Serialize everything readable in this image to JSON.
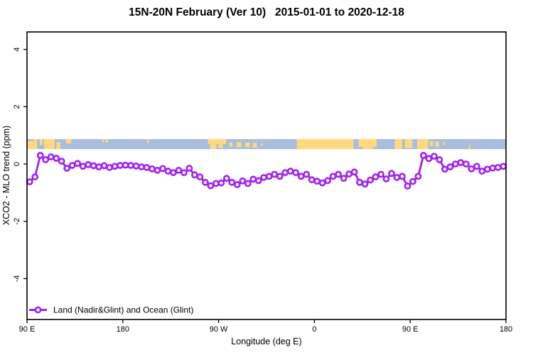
{
  "window": {
    "title": "15N-20N February (Ver 10)   2015-01-01 to 2020-12-18"
  },
  "chart_data": {
    "type": "line",
    "title": "15N-20N February (Ver 10)   2015-01-01 to 2020-12-18",
    "xlabel": "Longitude (deg E)",
    "ylabel": "XCO2 - MLO trend (ppm)",
    "xlim": [
      90,
      540
    ],
    "ylim": [
      -5.4,
      4.6
    ],
    "grid": false,
    "x_ticks": [
      {
        "value": 90,
        "label": "90 E"
      },
      {
        "value": 180,
        "label": "180"
      },
      {
        "value": 270,
        "label": "90 W"
      },
      {
        "value": 360,
        "label": "0"
      },
      {
        "value": 450,
        "label": "90 E"
      },
      {
        "value": 540,
        "label": "180"
      }
    ],
    "y_ticks": [
      {
        "value": 4,
        "label": "4"
      },
      {
        "value": 2,
        "label": "2"
      },
      {
        "value": 0,
        "label": "0"
      },
      {
        "value": -2,
        "label": "-2"
      },
      {
        "value": -4,
        "label": "-4"
      }
    ],
    "legend": {
      "position": "bottom-left",
      "label": "Land (Nadir&Glint) and Ocean (Glint)"
    },
    "colors": {
      "series": "#A020F0",
      "marker_fill": "#FFFFFF",
      "land": "#FFD87F",
      "ocean": "#A8BEDC",
      "axis": "#000000"
    },
    "map_band": {
      "description": "land/ocean mask strip for 15N-20N",
      "value_top": 0.87,
      "value_bottom": 0.52,
      "land_segments": [
        {
          "x0": 90,
          "x1": 99.5,
          "t": 0.2,
          "b": 1
        },
        {
          "x0": 96,
          "x1": 99.5,
          "t": 0,
          "b": 0.2
        },
        {
          "x0": 102,
          "x1": 104.5,
          "t": 0,
          "b": 0.6
        },
        {
          "x0": 106,
          "x1": 116,
          "t": 0,
          "b": 1
        },
        {
          "x0": 117.5,
          "x1": 121.5,
          "t": 0.3,
          "b": 1
        },
        {
          "x0": 126.5,
          "x1": 131.5,
          "t": 0,
          "b": 0.45
        },
        {
          "x0": 160.5,
          "x1": 162.5,
          "t": 0,
          "b": 0.3
        },
        {
          "x0": 164,
          "x1": 166,
          "t": 0,
          "b": 0.35
        },
        {
          "x0": 203,
          "x1": 204.5,
          "t": 0,
          "b": 0.4
        },
        {
          "x0": 260,
          "x1": 277,
          "t": 0,
          "b": 0.5
        },
        {
          "x0": 262,
          "x1": 268,
          "t": 0.5,
          "b": 1
        },
        {
          "x0": 270,
          "x1": 274,
          "t": 0.5,
          "b": 0.9
        },
        {
          "x0": 280,
          "x1": 283,
          "t": 0.35,
          "b": 0.75
        },
        {
          "x0": 287,
          "x1": 291.5,
          "t": 0.3,
          "b": 0.8
        },
        {
          "x0": 295,
          "x1": 299.5,
          "t": 0.35,
          "b": 0.8
        },
        {
          "x0": 302,
          "x1": 306,
          "t": 0.4,
          "b": 0.85
        },
        {
          "x0": 310,
          "x1": 311.5,
          "t": 0.4,
          "b": 0.7
        },
        {
          "x0": 343.5,
          "x1": 396.5,
          "t": 0,
          "b": 1
        },
        {
          "x0": 401.5,
          "x1": 418.5,
          "t": 0,
          "b": 0.8
        },
        {
          "x0": 405,
          "x1": 415,
          "t": 0.8,
          "b": 1
        },
        {
          "x0": 435.5,
          "x1": 442.5,
          "t": 0,
          "b": 1
        },
        {
          "x0": 445,
          "x1": 452,
          "t": 0,
          "b": 0.9
        },
        {
          "x0": 456.5,
          "x1": 467,
          "t": 0,
          "b": 1
        },
        {
          "x0": 468.5,
          "x1": 471.5,
          "t": 0.2,
          "b": 0.7
        },
        {
          "x0": 473.5,
          "x1": 477,
          "t": 0.25,
          "b": 0.75
        },
        {
          "x0": 481,
          "x1": 483,
          "t": 0.3,
          "b": 0.6
        },
        {
          "x0": 505,
          "x1": 506.5,
          "t": 0.6,
          "b": 1
        }
      ]
    },
    "series": [
      {
        "name": "Land (Nadir&Glint) and Ocean (Glint)",
        "color": "#A020F0",
        "marker": "circle-open",
        "x": [
          92.5,
          97.5,
          102.5,
          107.5,
          112.5,
          117.5,
          122.5,
          127.5,
          132.5,
          137.5,
          142.5,
          147.5,
          152.5,
          157.5,
          162.5,
          167.5,
          172.5,
          177.5,
          182.5,
          187.5,
          192.5,
          197.5,
          202.5,
          207.5,
          212.5,
          217.5,
          222.5,
          227.5,
          232.5,
          237.5,
          242.5,
          247.5,
          252.5,
          257.5,
          262.5,
          267.5,
          272.5,
          277.5,
          282.5,
          287.5,
          292.5,
          297.5,
          302.5,
          307.5,
          312.5,
          317.5,
          322.5,
          327.5,
          332.5,
          337.5,
          342.5,
          347.5,
          352.5,
          357.5,
          362.5,
          367.5,
          372.5,
          377.5,
          382.5,
          387.5,
          392.5,
          397.5,
          402.5,
          407.5,
          412.5,
          417.5,
          422.5,
          427.5,
          432.5,
          437.5,
          442.5,
          447.5,
          452.5,
          457.5,
          462.5,
          467.5,
          472.5,
          477.5,
          482.5,
          487.5,
          492.5,
          497.5,
          502.5,
          507.5,
          512.5,
          517.5,
          522.5,
          527.5,
          532.5,
          537.5
        ],
        "y": [
          -0.62,
          -0.45,
          0.3,
          0.15,
          0.25,
          0.2,
          0.1,
          -0.15,
          -0.05,
          0.02,
          -0.08,
          -0.02,
          -0.06,
          -0.1,
          -0.06,
          -0.12,
          -0.08,
          -0.05,
          -0.04,
          -0.05,
          -0.07,
          -0.1,
          -0.12,
          -0.17,
          -0.22,
          -0.16,
          -0.25,
          -0.3,
          -0.22,
          -0.3,
          -0.15,
          -0.38,
          -0.45,
          -0.64,
          -0.76,
          -0.68,
          -0.66,
          -0.5,
          -0.64,
          -0.72,
          -0.59,
          -0.68,
          -0.53,
          -0.58,
          -0.47,
          -0.43,
          -0.36,
          -0.43,
          -0.3,
          -0.25,
          -0.3,
          -0.43,
          -0.36,
          -0.55,
          -0.6,
          -0.66,
          -0.58,
          -0.43,
          -0.36,
          -0.5,
          -0.35,
          -0.28,
          -0.64,
          -0.7,
          -0.56,
          -0.45,
          -0.36,
          -0.52,
          -0.33,
          -0.47,
          -0.43,
          -0.77,
          -0.61,
          -0.43,
          0.3,
          0.19,
          0.27,
          0.15,
          -0.18,
          -0.1,
          0.0,
          0.05,
          0.0,
          -0.17,
          -0.08,
          -0.25,
          -0.18,
          -0.14,
          -0.12,
          -0.08
        ]
      }
    ]
  }
}
